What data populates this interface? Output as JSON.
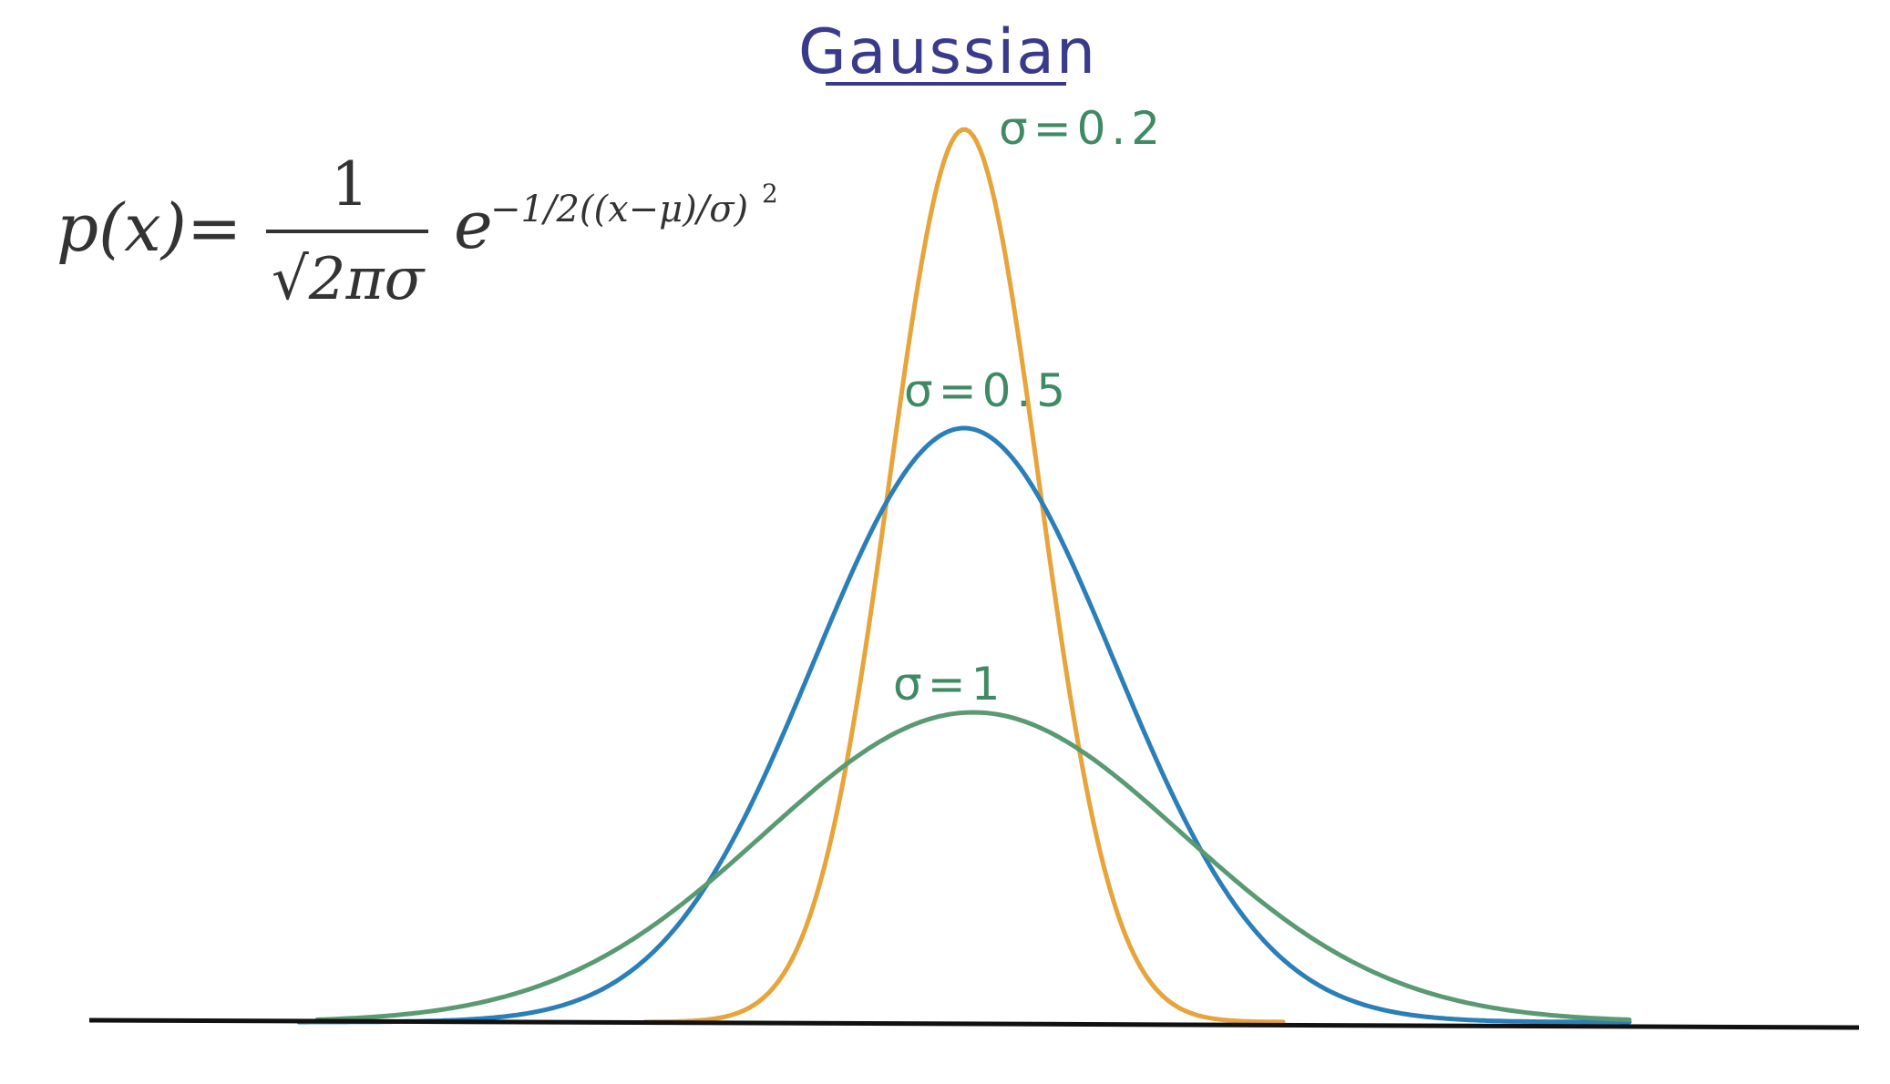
{
  "title": "Gaussian",
  "formula": {
    "lhs": "p(x)",
    "equals": "=",
    "numerator": "1",
    "denominator": "√2πσ",
    "base": "e",
    "exponent": "−1/2((x−μ)/σ)",
    "exponent_power": "2"
  },
  "curves": [
    {
      "label": "σ=0.2",
      "sigma": 0.2,
      "color": "#e6a43a"
    },
    {
      "label": "σ=0.5",
      "sigma": 0.5,
      "color": "#2a7fb8"
    },
    {
      "label": "σ=1",
      "sigma": 1,
      "color": "#5a9a72"
    }
  ],
  "colors": {
    "title": "#3a3a8c",
    "label": "#3f8a64",
    "axis": "#111111",
    "formula": "#333333"
  }
}
